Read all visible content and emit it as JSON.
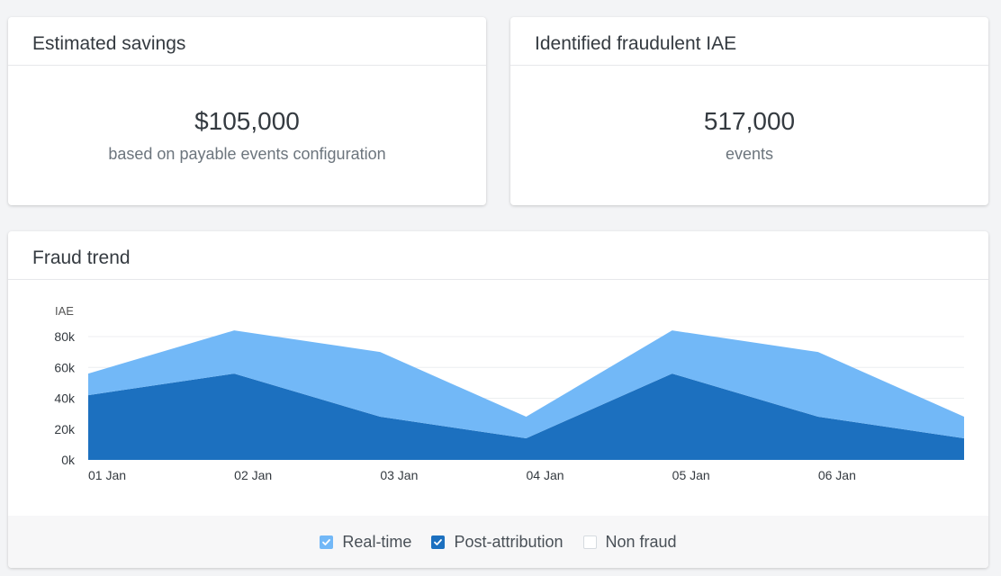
{
  "savings_card": {
    "title": "Estimated savings",
    "value": "$105,000",
    "subtitle": "based on payable events configuration"
  },
  "fraud_card": {
    "title": "Identified fraudulent IAE",
    "value": "517,000",
    "subtitle": "events"
  },
  "trend_card": {
    "title": "Fraud trend",
    "legend": [
      {
        "label": "Real-time",
        "checked": true,
        "color": "#72b8f7"
      },
      {
        "label": "Post-attribution",
        "checked": true,
        "color": "#1c70bf"
      },
      {
        "label": "Non fraud",
        "checked": false,
        "color": "#d6dbe0"
      }
    ]
  },
  "chart_data": {
    "type": "area",
    "stacked": true,
    "ylabel": "IAE",
    "ylim": [
      0,
      80000
    ],
    "yticks": [
      0,
      20000,
      40000,
      60000,
      80000
    ],
    "ytick_labels": [
      "0k",
      "20k",
      "40k",
      "60k",
      "80k"
    ],
    "x_tick_labels": [
      "01 Jan",
      "02 Jan",
      "03 Jan",
      "04 Jan",
      "05 Jan",
      "06 Jan"
    ],
    "x": [
      0,
      1,
      2,
      3,
      4,
      5,
      6
    ],
    "grid": true,
    "series": [
      {
        "name": "Post-attribution",
        "color": "#1c70bf",
        "values": [
          42000,
          56000,
          28000,
          14000,
          56000,
          28000,
          14000
        ]
      },
      {
        "name": "Real-time",
        "color": "#72b8f7",
        "values": [
          14000,
          28000,
          42000,
          14000,
          28000,
          42000,
          14000
        ]
      }
    ]
  }
}
